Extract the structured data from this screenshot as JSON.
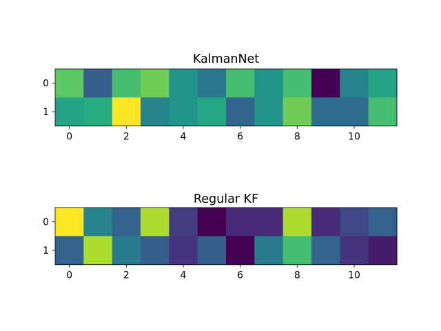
{
  "chart_data": [
    {
      "type": "heatmap",
      "title": "KalmanNet",
      "colormap": "viridis",
      "xlabel": "",
      "ylabel": "",
      "x_ticks": [
        "0",
        "2",
        "4",
        "6",
        "8",
        "10"
      ],
      "y_ticks": [
        "0",
        "1"
      ],
      "values": [
        [
          0.75,
          0.3,
          0.7,
          0.78,
          0.52,
          0.4,
          0.7,
          0.52,
          0.7,
          0.0,
          0.45,
          0.58
        ],
        [
          0.58,
          0.62,
          1.0,
          0.45,
          0.52,
          0.6,
          0.33,
          0.52,
          0.78,
          0.36,
          0.36,
          0.7
        ]
      ]
    },
    {
      "type": "heatmap",
      "title": "Regular KF",
      "colormap": "viridis",
      "xlabel": "",
      "ylabel": "",
      "x_ticks": [
        "0",
        "2",
        "4",
        "6",
        "8",
        "10"
      ],
      "y_ticks": [
        "0",
        "1"
      ],
      "values": [
        [
          1.0,
          0.45,
          0.32,
          0.88,
          0.18,
          0.0,
          0.12,
          0.12,
          0.88,
          0.12,
          0.22,
          0.32
        ],
        [
          0.32,
          0.88,
          0.42,
          0.3,
          0.15,
          0.3,
          0.0,
          0.42,
          0.7,
          0.32,
          0.15,
          0.08
        ]
      ]
    }
  ]
}
